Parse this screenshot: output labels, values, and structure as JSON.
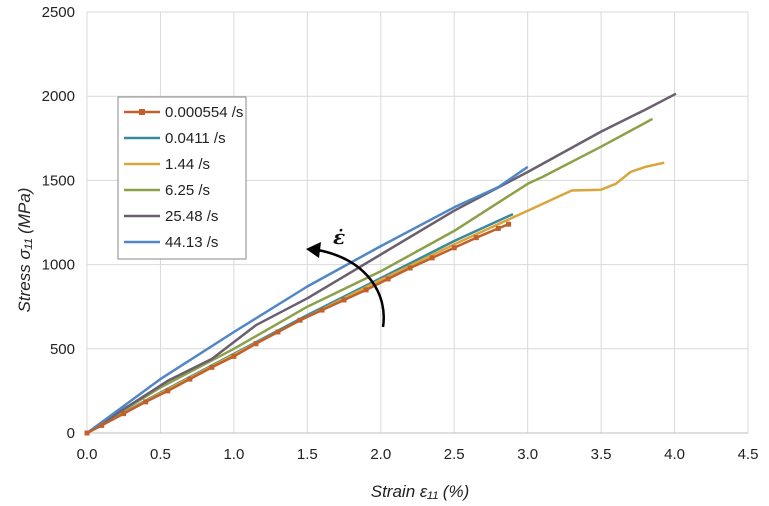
{
  "chart_data": {
    "type": "line",
    "xlabel": "Strain ε₁₁ (%)",
    "ylabel": "Stress σ₁₁ (MPa)",
    "xlim": [
      0,
      4.5
    ],
    "ylim": [
      0,
      2500
    ],
    "x_ticks": [
      "0.0",
      "0.5",
      "1.0",
      "1.5",
      "2.0",
      "2.5",
      "3.0",
      "3.5",
      "4.0",
      "4.5"
    ],
    "y_ticks": [
      "0",
      "500",
      "1000",
      "1500",
      "2000",
      "2500"
    ],
    "grid": true,
    "legend_position": "upper-left",
    "annotation": {
      "label": "ε̇",
      "meaning": "increasing strain rate arrow"
    },
    "series": [
      {
        "name": "0.000554 /s",
        "color": "#c0602a",
        "marker": "square",
        "x": [
          0,
          0.1,
          0.25,
          0.4,
          0.55,
          0.7,
          0.85,
          1.0,
          1.15,
          1.3,
          1.45,
          1.6,
          1.75,
          1.9,
          2.05,
          2.2,
          2.35,
          2.5,
          2.65,
          2.8,
          2.87
        ],
        "y": [
          0,
          45,
          115,
          185,
          250,
          320,
          390,
          455,
          530,
          600,
          670,
          730,
          790,
          850,
          915,
          980,
          1040,
          1100,
          1160,
          1215,
          1240
        ]
      },
      {
        "name": "0.0411 /s",
        "color": "#3b8a9c",
        "x": [
          0,
          0.5,
          1.0,
          1.5,
          2.0,
          2.5,
          2.9
        ],
        "y": [
          0,
          240,
          470,
          700,
          920,
          1140,
          1300
        ]
      },
      {
        "name": "1.44 /s",
        "color": "#d9a63c",
        "x": [
          0,
          0.5,
          1.0,
          1.5,
          2.0,
          2.5,
          3.0,
          3.2,
          3.3,
          3.5,
          3.6,
          3.7,
          3.8,
          3.93
        ],
        "y": [
          0,
          235,
          465,
          690,
          910,
          1120,
          1320,
          1400,
          1440,
          1445,
          1480,
          1550,
          1580,
          1605
        ]
      },
      {
        "name": "6.25 /s",
        "color": "#8ca04a",
        "x": [
          0,
          0.5,
          1.0,
          1.5,
          2.0,
          2.5,
          3.0,
          3.1,
          3.5,
          3.85
        ],
        "y": [
          0,
          270,
          500,
          750,
          960,
          1200,
          1480,
          1520,
          1700,
          1865
        ]
      },
      {
        "name": "25.48 /s",
        "color": "#6a5f6e",
        "x": [
          0,
          0.3,
          0.55,
          0.85,
          1.15,
          1.5,
          2.0,
          2.5,
          3.0,
          3.5,
          3.8,
          4.01
        ],
        "y": [
          0,
          170,
          310,
          440,
          640,
          800,
          1060,
          1320,
          1550,
          1790,
          1920,
          2015
        ]
      },
      {
        "name": "44.13 /s",
        "color": "#4f86c6",
        "x": [
          0,
          0.5,
          1.0,
          1.5,
          2.0,
          2.5,
          2.8,
          3.0
        ],
        "y": [
          0,
          320,
          600,
          870,
          1110,
          1340,
          1460,
          1580
        ]
      }
    ]
  }
}
